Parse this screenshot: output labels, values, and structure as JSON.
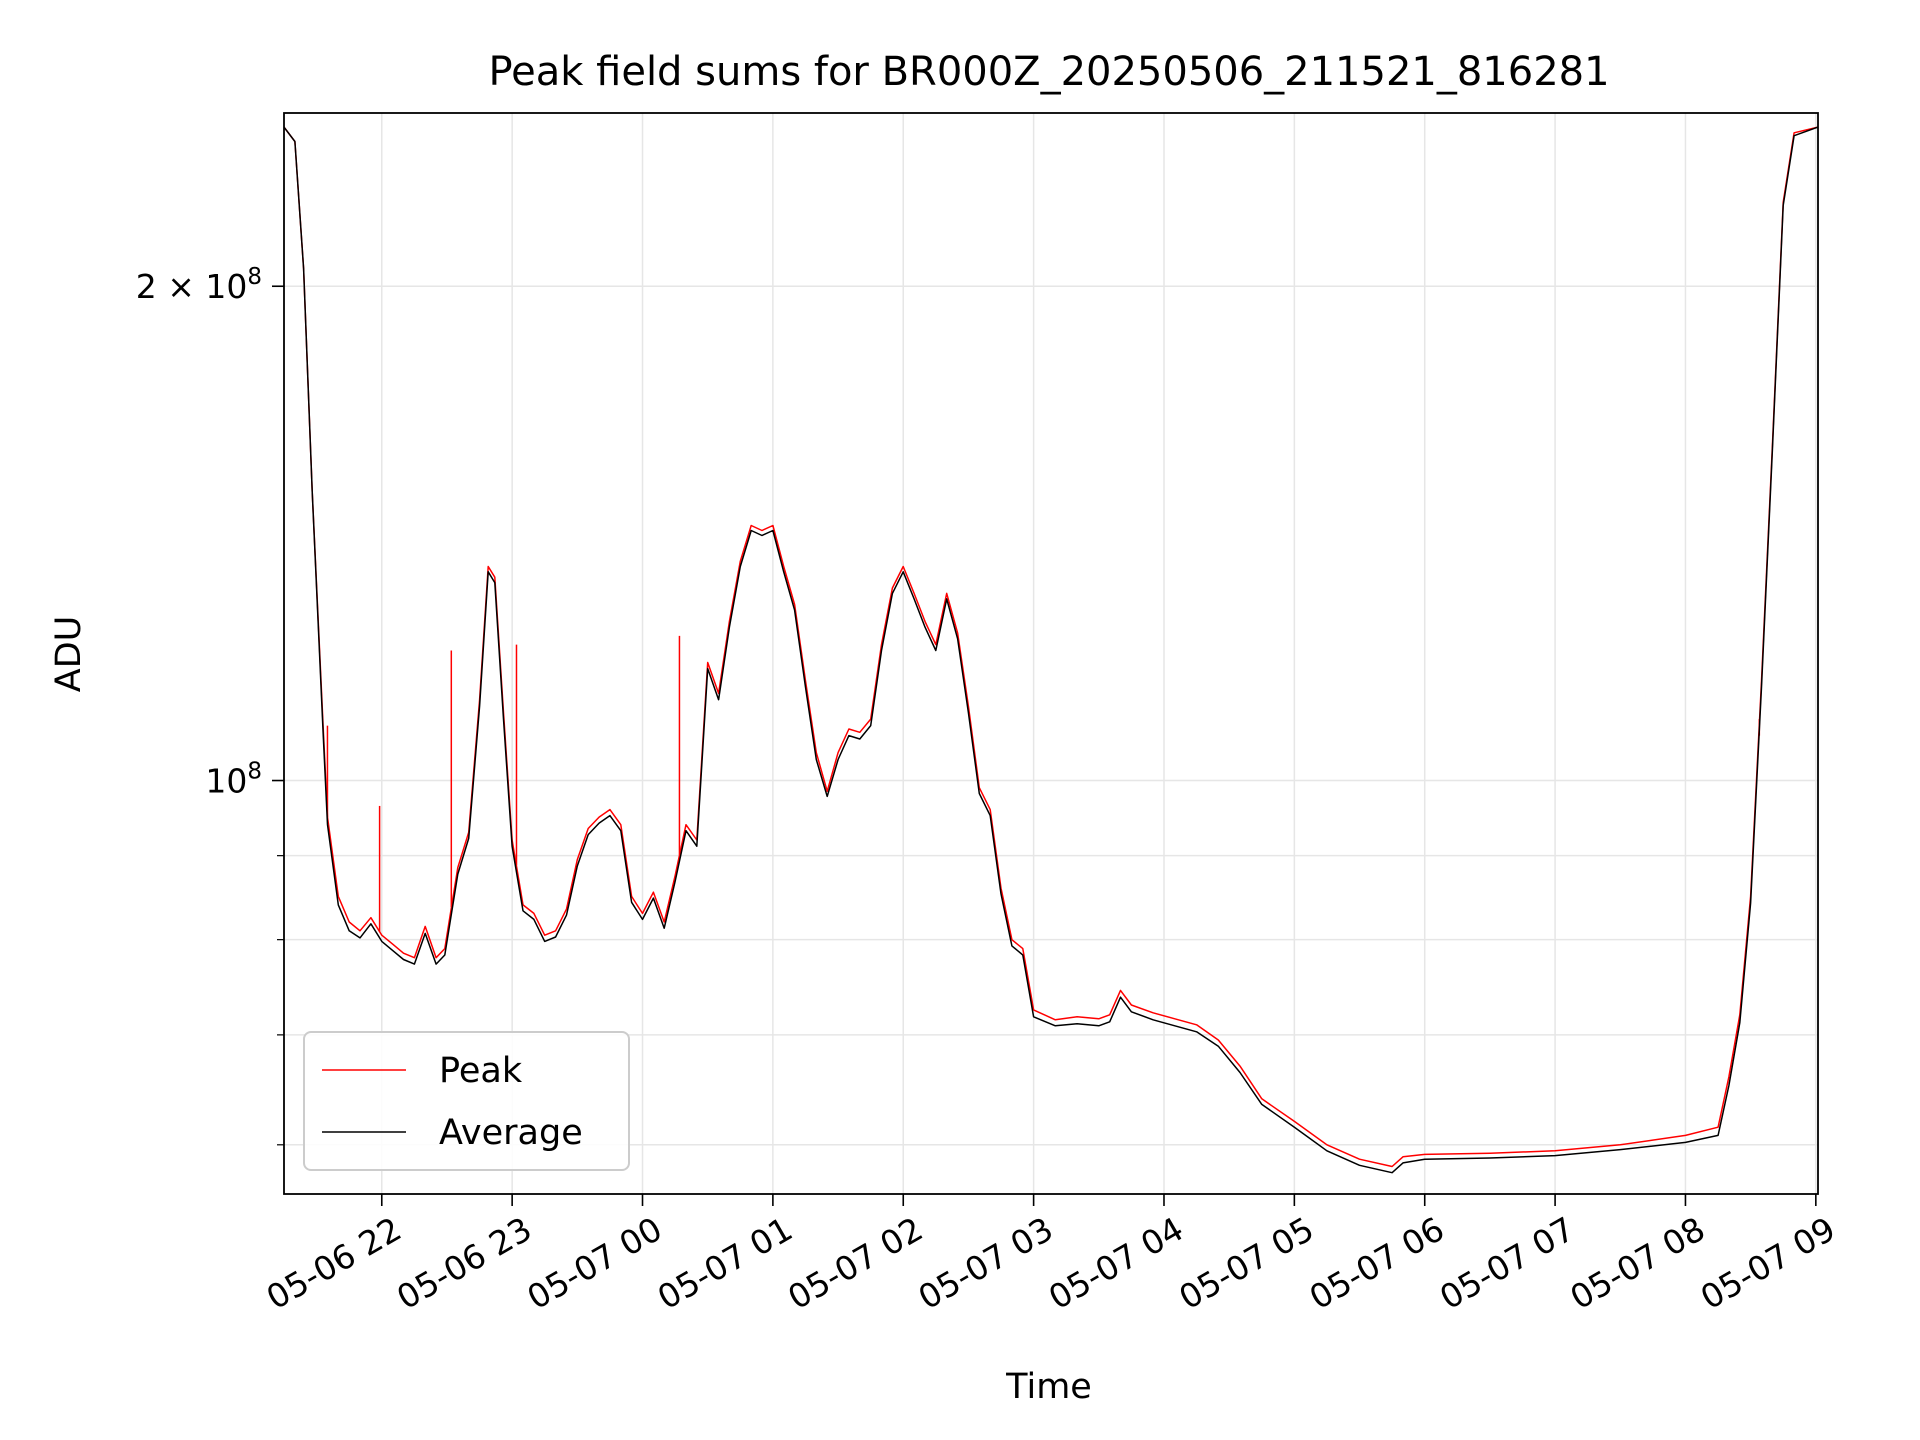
{
  "chart_data": {
    "type": "line",
    "title": "Peak field sums for BR000Z_20250506_211521_816281",
    "xlabel": "Time",
    "ylabel": "ADU",
    "yscale": "log",
    "ylim": [
      56000000,
      255000000
    ],
    "xlim": [
      "2025-05-06 21:15",
      "2025-05-07 09:01"
    ],
    "grid": true,
    "legend_position": "lower-left",
    "x_ticks": [
      {
        "t": "2025-05-06 22:00",
        "label": "05-06 22"
      },
      {
        "t": "2025-05-06 23:00",
        "label": "05-06 23"
      },
      {
        "t": "2025-05-07 00:00",
        "label": "05-07 00"
      },
      {
        "t": "2025-05-07 01:00",
        "label": "05-07 01"
      },
      {
        "t": "2025-05-07 02:00",
        "label": "05-07 02"
      },
      {
        "t": "2025-05-07 03:00",
        "label": "05-07 03"
      },
      {
        "t": "2025-05-07 04:00",
        "label": "05-07 04"
      },
      {
        "t": "2025-05-07 05:00",
        "label": "05-07 05"
      },
      {
        "t": "2025-05-07 06:00",
        "label": "05-07 06"
      },
      {
        "t": "2025-05-07 07:00",
        "label": "05-07 07"
      },
      {
        "t": "2025-05-07 08:00",
        "label": "05-07 08"
      },
      {
        "t": "2025-05-07 09:00",
        "label": "05-07 09"
      }
    ],
    "y_major_ticks": [
      {
        "value": 100000000,
        "label_base": "10",
        "label_exp": "8",
        "label_coef": ""
      },
      {
        "value": 200000000,
        "label_base": "10",
        "label_exp": "8",
        "label_coef": "2 × "
      }
    ],
    "y_minor_ticks": [
      60000000,
      70000000,
      80000000,
      90000000
    ],
    "series": [
      {
        "name": "Peak",
        "color": "#ff0000",
        "points": [
          [
            "2025-05-06 21:15",
            250000000
          ],
          [
            "2025-05-06 21:20",
            245000000
          ],
          [
            "2025-05-06 21:24",
            205000000
          ],
          [
            "2025-05-06 21:28",
            150000000
          ],
          [
            "2025-05-06 21:33",
            108000000
          ],
          [
            "2025-05-06 21:35",
            95000000
          ],
          [
            "2025-05-06 21:40",
            85000000
          ],
          [
            "2025-05-06 21:45",
            82000000
          ],
          [
            "2025-05-06 21:50",
            81000000
          ],
          [
            "2025-05-06 21:55",
            82500000
          ],
          [
            "2025-05-06 22:00",
            80500000
          ],
          [
            "2025-05-06 22:05",
            79500000
          ],
          [
            "2025-05-06 22:10",
            78500000
          ],
          [
            "2025-05-06 22:15",
            78000000
          ],
          [
            "2025-05-06 22:20",
            81500000
          ],
          [
            "2025-05-06 22:25",
            78000000
          ],
          [
            "2025-05-06 22:29",
            79000000
          ],
          [
            "2025-05-06 22:35",
            88500000
          ],
          [
            "2025-05-06 22:40",
            93000000
          ],
          [
            "2025-05-06 22:45",
            112000000
          ],
          [
            "2025-05-06 22:49",
            135000000
          ],
          [
            "2025-05-06 22:52",
            133000000
          ],
          [
            "2025-05-06 22:56",
            110000000
          ],
          [
            "2025-05-06 23:00",
            92000000
          ],
          [
            "2025-05-06 23:05",
            84000000
          ],
          [
            "2025-05-06 23:10",
            83000000
          ],
          [
            "2025-05-06 23:15",
            80500000
          ],
          [
            "2025-05-06 23:20",
            81000000
          ],
          [
            "2025-05-06 23:25",
            83500000
          ],
          [
            "2025-05-06 23:30",
            89500000
          ],
          [
            "2025-05-06 23:35",
            93500000
          ],
          [
            "2025-05-06 23:40",
            95000000
          ],
          [
            "2025-05-06 23:45",
            96000000
          ],
          [
            "2025-05-06 23:50",
            94000000
          ],
          [
            "2025-05-06 23:55",
            85000000
          ],
          [
            "2025-05-07 00:00",
            83000000
          ],
          [
            "2025-05-07 00:05",
            85500000
          ],
          [
            "2025-05-07 00:10",
            82000000
          ],
          [
            "2025-05-07 00:15",
            87500000
          ],
          [
            "2025-05-07 00:20",
            94000000
          ],
          [
            "2025-05-07 00:25",
            92000000
          ],
          [
            "2025-05-07 00:30",
            118000000
          ],
          [
            "2025-05-07 00:35",
            113000000
          ],
          [
            "2025-05-07 00:40",
            125000000
          ],
          [
            "2025-05-07 00:45",
            136000000
          ],
          [
            "2025-05-07 00:50",
            143000000
          ],
          [
            "2025-05-07 00:55",
            142000000
          ],
          [
            "2025-05-07 01:00",
            143000000
          ],
          [
            "2025-05-07 01:05",
            135000000
          ],
          [
            "2025-05-07 01:10",
            128000000
          ],
          [
            "2025-05-07 01:15",
            115000000
          ],
          [
            "2025-05-07 01:20",
            104000000
          ],
          [
            "2025-05-07 01:25",
            98500000
          ],
          [
            "2025-05-07 01:30",
            104000000
          ],
          [
            "2025-05-07 01:35",
            107500000
          ],
          [
            "2025-05-07 01:40",
            107000000
          ],
          [
            "2025-05-07 01:45",
            109000000
          ],
          [
            "2025-05-07 01:50",
            121000000
          ],
          [
            "2025-05-07 01:55",
            131000000
          ],
          [
            "2025-05-07 02:00",
            135000000
          ],
          [
            "2025-05-07 02:05",
            130000000
          ],
          [
            "2025-05-07 02:10",
            125000000
          ],
          [
            "2025-05-07 02:15",
            121000000
          ],
          [
            "2025-05-07 02:20",
            130000000
          ],
          [
            "2025-05-07 02:25",
            123000000
          ],
          [
            "2025-05-07 02:30",
            111000000
          ],
          [
            "2025-05-07 02:35",
            99000000
          ],
          [
            "2025-05-07 02:40",
            96000000
          ],
          [
            "2025-05-07 02:45",
            86000000
          ],
          [
            "2025-05-07 02:50",
            80000000
          ],
          [
            "2025-05-07 02:55",
            79000000
          ],
          [
            "2025-05-07 03:00",
            72500000
          ],
          [
            "2025-05-07 03:10",
            71500000
          ],
          [
            "2025-05-07 03:20",
            71800000
          ],
          [
            "2025-05-07 03:30",
            71600000
          ],
          [
            "2025-05-07 03:35",
            72000000
          ],
          [
            "2025-05-07 03:40",
            74500000
          ],
          [
            "2025-05-07 03:45",
            73000000
          ],
          [
            "2025-05-07 03:55",
            72200000
          ],
          [
            "2025-05-07 04:05",
            71600000
          ],
          [
            "2025-05-07 04:15",
            71000000
          ],
          [
            "2025-05-07 04:25",
            69500000
          ],
          [
            "2025-05-07 04:35",
            67000000
          ],
          [
            "2025-05-07 04:45",
            64000000
          ],
          [
            "2025-05-07 05:00",
            62000000
          ],
          [
            "2025-05-07 05:15",
            60000000
          ],
          [
            "2025-05-07 05:30",
            58800000
          ],
          [
            "2025-05-07 05:45",
            58200000
          ],
          [
            "2025-05-07 05:50",
            59000000
          ],
          [
            "2025-05-07 06:00",
            59200000
          ],
          [
            "2025-05-07 06:30",
            59300000
          ],
          [
            "2025-05-07 07:00",
            59500000
          ],
          [
            "2025-05-07 07:30",
            60000000
          ],
          [
            "2025-05-07 08:00",
            60800000
          ],
          [
            "2025-05-07 08:15",
            61500000
          ],
          [
            "2025-05-07 08:20",
            66000000
          ],
          [
            "2025-05-07 08:25",
            72000000
          ],
          [
            "2025-05-07 08:30",
            85000000
          ],
          [
            "2025-05-07 08:35",
            115000000
          ],
          [
            "2025-05-07 08:40",
            160000000
          ],
          [
            "2025-05-07 08:45",
            225000000
          ],
          [
            "2025-05-07 08:50",
            248000000
          ],
          [
            "2025-05-07 09:01",
            250000000
          ]
        ],
        "spikes": [
          [
            "2025-05-06 21:35",
            108000000
          ],
          [
            "2025-05-06 21:59",
            96500000
          ],
          [
            "2025-05-06 22:32",
            120000000
          ],
          [
            "2025-05-06 23:02",
            121000000
          ],
          [
            "2025-05-07 00:17",
            122500000
          ],
          [
            "2025-05-07 08:34",
            106500000
          ]
        ]
      },
      {
        "name": "Average",
        "color": "#000000",
        "points": [
          [
            "2025-05-06 21:15",
            250000000
          ],
          [
            "2025-05-06 21:20",
            245000000
          ],
          [
            "2025-05-06 21:24",
            205000000
          ],
          [
            "2025-05-06 21:28",
            150000000
          ],
          [
            "2025-05-06 21:33",
            107000000
          ],
          [
            "2025-05-06 21:35",
            94000000
          ],
          [
            "2025-05-06 21:40",
            84000000
          ],
          [
            "2025-05-06 21:45",
            81000000
          ],
          [
            "2025-05-06 21:50",
            80200000
          ],
          [
            "2025-05-06 21:55",
            81800000
          ],
          [
            "2025-05-06 22:00",
            79800000
          ],
          [
            "2025-05-06 22:05",
            78800000
          ],
          [
            "2025-05-06 22:10",
            77800000
          ],
          [
            "2025-05-06 22:15",
            77300000
          ],
          [
            "2025-05-06 22:20",
            80700000
          ],
          [
            "2025-05-06 22:25",
            77300000
          ],
          [
            "2025-05-06 22:29",
            78300000
          ],
          [
            "2025-05-06 22:35",
            87700000
          ],
          [
            "2025-05-06 22:40",
            92200000
          ],
          [
            "2025-05-06 22:45",
            111000000
          ],
          [
            "2025-05-06 22:49",
            134000000
          ],
          [
            "2025-05-06 22:52",
            132000000
          ],
          [
            "2025-05-06 22:56",
            109000000
          ],
          [
            "2025-05-06 23:00",
            91200000
          ],
          [
            "2025-05-06 23:05",
            83300000
          ],
          [
            "2025-05-06 23:10",
            82300000
          ],
          [
            "2025-05-06 23:15",
            79800000
          ],
          [
            "2025-05-06 23:20",
            80300000
          ],
          [
            "2025-05-06 23:25",
            82800000
          ],
          [
            "2025-05-06 23:30",
            88700000
          ],
          [
            "2025-05-06 23:35",
            92700000
          ],
          [
            "2025-05-06 23:40",
            94200000
          ],
          [
            "2025-05-06 23:45",
            95200000
          ],
          [
            "2025-05-06 23:50",
            93200000
          ],
          [
            "2025-05-06 23:55",
            84300000
          ],
          [
            "2025-05-07 00:00",
            82300000
          ],
          [
            "2025-05-07 00:05",
            84800000
          ],
          [
            "2025-05-07 00:10",
            81300000
          ],
          [
            "2025-05-07 00:15",
            86800000
          ],
          [
            "2025-05-07 00:20",
            93200000
          ],
          [
            "2025-05-07 00:25",
            91200000
          ],
          [
            "2025-05-07 00:30",
            117000000
          ],
          [
            "2025-05-07 00:35",
            112000000
          ],
          [
            "2025-05-07 00:40",
            124000000
          ],
          [
            "2025-05-07 00:45",
            135000000
          ],
          [
            "2025-05-07 00:50",
            142000000
          ],
          [
            "2025-05-07 00:55",
            141000000
          ],
          [
            "2025-05-07 01:00",
            142000000
          ],
          [
            "2025-05-07 01:05",
            134000000
          ],
          [
            "2025-05-07 01:10",
            127000000
          ],
          [
            "2025-05-07 01:15",
            114000000
          ],
          [
            "2025-05-07 01:20",
            103000000
          ],
          [
            "2025-05-07 01:25",
            97800000
          ],
          [
            "2025-05-07 01:30",
            103000000
          ],
          [
            "2025-05-07 01:35",
            106500000
          ],
          [
            "2025-05-07 01:40",
            106000000
          ],
          [
            "2025-05-07 01:45",
            108000000
          ],
          [
            "2025-05-07 01:50",
            120000000
          ],
          [
            "2025-05-07 01:55",
            130000000
          ],
          [
            "2025-05-07 02:00",
            134000000
          ],
          [
            "2025-05-07 02:05",
            129000000
          ],
          [
            "2025-05-07 02:10",
            124000000
          ],
          [
            "2025-05-07 02:15",
            120000000
          ],
          [
            "2025-05-07 02:20",
            129000000
          ],
          [
            "2025-05-07 02:25",
            122000000
          ],
          [
            "2025-05-07 02:30",
            110000000
          ],
          [
            "2025-05-07 02:35",
            98200000
          ],
          [
            "2025-05-07 02:40",
            95200000
          ],
          [
            "2025-05-07 02:45",
            85300000
          ],
          [
            "2025-05-07 02:50",
            79300000
          ],
          [
            "2025-05-07 02:55",
            78300000
          ],
          [
            "2025-05-07 03:00",
            71800000
          ],
          [
            "2025-05-07 03:10",
            70900000
          ],
          [
            "2025-05-07 03:20",
            71100000
          ],
          [
            "2025-05-07 03:30",
            70900000
          ],
          [
            "2025-05-07 03:35",
            71300000
          ],
          [
            "2025-05-07 03:40",
            73800000
          ],
          [
            "2025-05-07 03:45",
            72300000
          ],
          [
            "2025-05-07 03:55",
            71500000
          ],
          [
            "2025-05-07 04:05",
            70900000
          ],
          [
            "2025-05-07 04:15",
            70300000
          ],
          [
            "2025-05-07 04:25",
            68900000
          ],
          [
            "2025-05-07 04:35",
            66400000
          ],
          [
            "2025-05-07 04:45",
            63500000
          ],
          [
            "2025-05-07 05:00",
            61500000
          ],
          [
            "2025-05-07 05:15",
            59500000
          ],
          [
            "2025-05-07 05:30",
            58300000
          ],
          [
            "2025-05-07 05:45",
            57700000
          ],
          [
            "2025-05-07 05:50",
            58500000
          ],
          [
            "2025-05-07 06:00",
            58800000
          ],
          [
            "2025-05-07 06:30",
            58900000
          ],
          [
            "2025-05-07 07:00",
            59100000
          ],
          [
            "2025-05-07 07:30",
            59600000
          ],
          [
            "2025-05-07 08:00",
            60200000
          ],
          [
            "2025-05-07 08:15",
            60800000
          ],
          [
            "2025-05-07 08:20",
            65200000
          ],
          [
            "2025-05-07 08:25",
            71200000
          ],
          [
            "2025-05-07 08:30",
            84200000
          ],
          [
            "2025-05-07 08:35",
            114000000
          ],
          [
            "2025-05-07 08:40",
            159000000
          ],
          [
            "2025-05-07 08:45",
            224000000
          ],
          [
            "2025-05-07 08:50",
            247000000
          ],
          [
            "2025-05-07 09:01",
            250000000
          ]
        ]
      }
    ]
  }
}
